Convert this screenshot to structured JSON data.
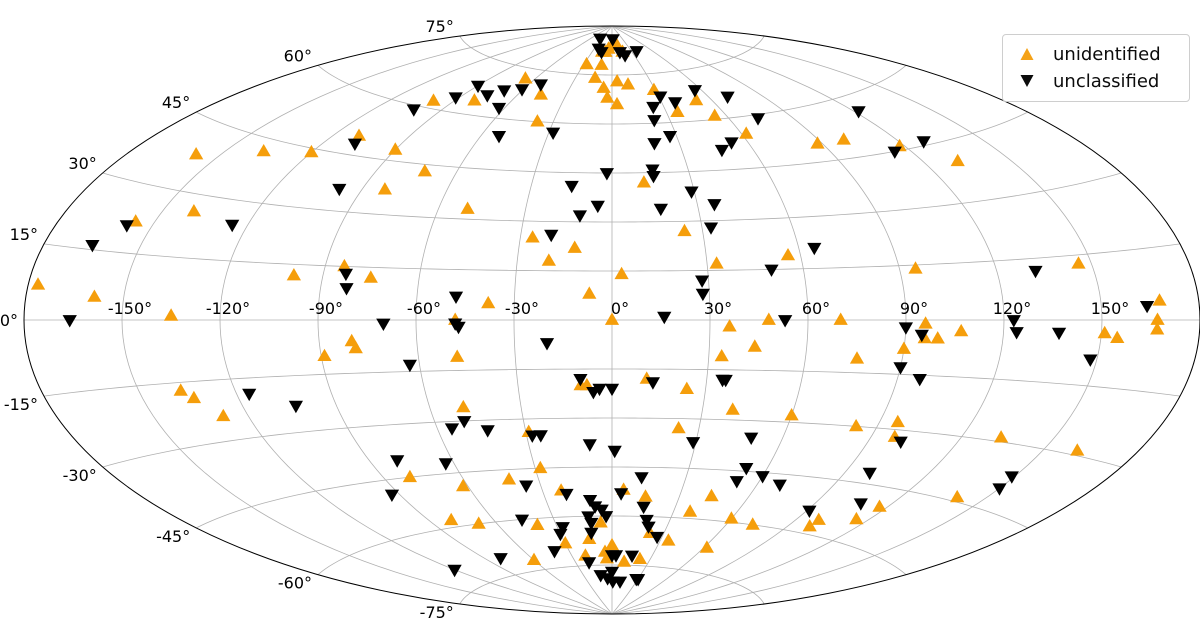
{
  "chart_data": {
    "type": "scatter",
    "projection": "aitoff",
    "grid": true,
    "legend_position": "top-right",
    "x_tick_labels": [
      "-150°",
      "-120°",
      "-90°",
      "-60°",
      "-30°",
      "0°",
      "30°",
      "60°",
      "90°",
      "120°",
      "150°"
    ],
    "y_tick_labels": [
      "75°",
      "60°",
      "45°",
      "30°",
      "15°",
      "0°",
      "-15°",
      "-30°",
      "-45°",
      "-60°",
      "-75°"
    ],
    "colors": {
      "unidentified": "#f59e0b",
      "unclassified": "#000000"
    },
    "markers": {
      "unidentified": "triangle-up",
      "unclassified": "triangle-down"
    },
    "series": [
      {
        "name": "unidentified",
        "points": [
          [
            -15,
            82
          ],
          [
            -10,
            82
          ],
          [
            -6,
            83
          ],
          [
            0,
            84
          ],
          [
            6,
            84
          ],
          [
            10,
            84
          ],
          [
            16,
            82
          ],
          [
            -27,
            78
          ],
          [
            -11,
            78
          ],
          [
            -100,
            62
          ],
          [
            -80,
            64
          ],
          [
            -110,
            50
          ],
          [
            -120,
            44
          ],
          [
            -137,
            42
          ],
          [
            -158,
            38
          ],
          [
            -90,
            48
          ],
          [
            -72,
            43
          ],
          [
            -82,
            37
          ],
          [
            -67,
            72
          ],
          [
            -46,
            68
          ],
          [
            -38,
            60
          ],
          [
            -14,
            74
          ],
          [
            -6,
            71
          ],
          [
            -3,
            68
          ],
          [
            3,
            66
          ],
          [
            4,
            73
          ],
          [
            12,
            72
          ],
          [
            29,
            70
          ],
          [
            36,
            63
          ],
          [
            51,
            66
          ],
          [
            54,
            61
          ],
          [
            62,
            55
          ],
          [
            88,
            50
          ],
          [
            100,
            50
          ],
          [
            118,
            46
          ],
          [
            132,
            40
          ],
          [
            12,
            42
          ],
          [
            -156,
            22
          ],
          [
            -140,
            26
          ],
          [
            -50,
            33
          ],
          [
            -26,
            25
          ],
          [
            -12,
            22
          ],
          [
            -20,
            18
          ],
          [
            -7,
            8
          ],
          [
            -99,
            12
          ],
          [
            -84,
            15
          ],
          [
            -75,
            12
          ],
          [
            -159,
            5
          ],
          [
            -135,
            1
          ],
          [
            -177,
            7
          ],
          [
            -38,
            5
          ],
          [
            3,
            14
          ],
          [
            24,
            27
          ],
          [
            33,
            17
          ],
          [
            56,
            19
          ],
          [
            95,
            14
          ],
          [
            146,
            13
          ],
          [
            168,
            4
          ],
          [
            -48,
            0
          ],
          [
            0,
            0
          ],
          [
            36,
            -2
          ],
          [
            48,
            0
          ],
          [
            70,
            0
          ],
          [
            96,
            -1
          ],
          [
            100,
            -5
          ],
          [
            107,
            -3
          ],
          [
            151,
            -3
          ],
          [
            155,
            -4
          ],
          [
            167,
            0
          ],
          [
            167,
            -2
          ],
          [
            96,
            -5
          ],
          [
            90,
            -8
          ],
          [
            44,
            -8
          ],
          [
            34,
            -11
          ],
          [
            76,
            -11
          ],
          [
            -89,
            -10
          ],
          [
            -79,
            -8
          ],
          [
            -80,
            -6
          ],
          [
            -48,
            -11
          ],
          [
            -10,
            -20
          ],
          [
            -8,
            -20
          ],
          [
            11,
            -18
          ],
          [
            24,
            -21
          ],
          [
            -134,
            -19
          ],
          [
            -137,
            -17
          ],
          [
            -128,
            -24
          ],
          [
            -49,
            -26
          ],
          [
            -29,
            -34
          ],
          [
            23,
            -33
          ],
          [
            40,
            -27
          ],
          [
            60,
            -28
          ],
          [
            83,
            -30
          ],
          [
            98,
            -32
          ],
          [
            96,
            -28
          ],
          [
            133,
            -29
          ],
          [
            161,
            -29
          ],
          [
            140,
            -44
          ],
          [
            117,
            -50
          ],
          [
            -80,
            -45
          ],
          [
            -62,
            -49
          ],
          [
            -42,
            -48
          ],
          [
            -28,
            -45
          ],
          [
            -22,
            -52
          ],
          [
            5,
            -52
          ],
          [
            15,
            -54
          ],
          [
            38,
            -58
          ],
          [
            44,
            -53
          ],
          [
            60,
            -59
          ],
          [
            73,
            -60
          ],
          [
            100,
            -56
          ],
          [
            115,
            -54
          ],
          [
            -80,
            -58
          ],
          [
            -69,
            -60
          ],
          [
            -40,
            -62
          ],
          [
            -30,
            -68
          ],
          [
            -14,
            -67
          ],
          [
            -6,
            -62
          ],
          [
            -5,
            -71
          ],
          [
            -4,
            -73
          ],
          [
            0,
            -69
          ],
          [
            22,
            -65
          ],
          [
            35,
            -67
          ],
          [
            62,
            -68
          ],
          [
            100,
            -58
          ],
          [
            -60,
            -72
          ],
          [
            -20,
            -72
          ],
          [
            10,
            -74
          ],
          [
            22,
            -73
          ]
        ]
      },
      {
        "name": "unclassified",
        "points": [
          [
            -23,
            83
          ],
          [
            -35,
            86
          ],
          [
            -16,
            82
          ],
          [
            2,
            86
          ],
          [
            12,
            82
          ],
          [
            18,
            81
          ],
          [
            38,
            82
          ],
          [
            -90,
            68
          ],
          [
            -92,
            64
          ],
          [
            -77,
            66
          ],
          [
            -71,
            68
          ],
          [
            -63,
            63
          ],
          [
            -61,
            69
          ],
          [
            -52,
            71
          ],
          [
            31,
            68
          ],
          [
            38,
            66
          ],
          [
            56,
            69
          ],
          [
            71,
            66
          ],
          [
            74,
            59
          ],
          [
            114,
            45
          ],
          [
            129,
            46
          ],
          [
            122,
            56
          ],
          [
            -103,
            59
          ],
          [
            -108,
            48
          ],
          [
            -98,
            36
          ],
          [
            -52,
            55
          ],
          [
            -28,
            57
          ],
          [
            22,
            61
          ],
          [
            24,
            65
          ],
          [
            27,
            56
          ],
          [
            47,
            51
          ],
          [
            53,
            53
          ],
          [
            19,
            54
          ],
          [
            16,
            44
          ],
          [
            29,
            39
          ],
          [
            36,
            35
          ],
          [
            -15,
            41
          ],
          [
            -5,
            35
          ],
          [
            -125,
            24
          ],
          [
            -20,
            26
          ],
          [
            -11,
            32
          ],
          [
            -2,
            45
          ],
          [
            16,
            46
          ],
          [
            17,
            34
          ],
          [
            33,
            28
          ],
          [
            -158,
            21
          ],
          [
            -165,
            16
          ],
          [
            -83,
            13
          ],
          [
            -82,
            9
          ],
          [
            -48,
            7
          ],
          [
            28,
            12
          ],
          [
            28,
            8
          ],
          [
            50,
            15
          ],
          [
            65,
            21
          ],
          [
            132,
            12
          ],
          [
            164,
            3
          ],
          [
            -166,
            0
          ],
          [
            -70,
            -1
          ],
          [
            -48,
            -1
          ],
          [
            -47,
            -2
          ],
          [
            16,
            1
          ],
          [
            53,
            0
          ],
          [
            90,
            -2
          ],
          [
            95,
            -4
          ],
          [
            123,
            0
          ],
          [
            124,
            -3
          ],
          [
            137,
            -3
          ],
          [
            148,
            -9
          ],
          [
            -20,
            -7
          ],
          [
            -63,
            -13
          ],
          [
            13,
            -19
          ],
          [
            -10,
            -18
          ],
          [
            -6,
            -22
          ],
          [
            -4,
            -21
          ],
          [
            0,
            -21
          ],
          [
            -116,
            -19
          ],
          [
            -103,
            -23
          ],
          [
            -55,
            -32
          ],
          [
            -50,
            -30
          ],
          [
            -43,
            -33
          ],
          [
            -28,
            -35
          ],
          [
            -25,
            -35
          ],
          [
            -8,
            -38
          ],
          [
            1,
            -40
          ],
          [
            29,
            -37
          ],
          [
            90,
            -13
          ],
          [
            97,
            -16
          ],
          [
            101,
            -33
          ],
          [
            99,
            -42
          ],
          [
            49,
            -35
          ],
          [
            52,
            -44
          ],
          [
            51,
            -48
          ],
          [
            60,
            -46
          ],
          [
            69,
            -48
          ],
          [
            36,
            -18
          ],
          [
            35,
            -18
          ],
          [
            -93,
            -49
          ],
          [
            -80,
            -40
          ],
          [
            -63,
            -42
          ],
          [
            -36,
            -50
          ],
          [
            4,
            -53
          ],
          [
            12,
            -48
          ],
          [
            15,
            -57
          ],
          [
            -46,
            -60
          ],
          [
            -20,
            -53
          ],
          [
            -12,
            -60
          ],
          [
            -10,
            -55
          ],
          [
            -27,
            -63
          ],
          [
            -8,
            -57
          ],
          [
            -5,
            -58
          ],
          [
            -3,
            -60
          ],
          [
            -12,
            -65
          ],
          [
            -11,
            -62
          ],
          [
            18,
            -61
          ],
          [
            20,
            -63
          ],
          [
            27,
            -66
          ],
          [
            -12,
            -78
          ],
          [
            -5,
            -79
          ],
          [
            0,
            -77
          ],
          [
            1,
            -80
          ],
          [
            10,
            -80
          ],
          [
            28,
            -79
          ],
          [
            30,
            -79
          ],
          [
            91,
            -54
          ],
          [
            108,
            -50
          ],
          [
            150,
            -40
          ],
          [
            149,
            -37
          ],
          [
            -120,
            -70
          ],
          [
            -80,
            -70
          ],
          [
            -40,
            -70
          ],
          [
            -30,
            -65
          ],
          [
            0,
            -72
          ],
          [
            3,
            -72
          ],
          [
            15,
            -72
          ],
          [
            -19,
            -74
          ]
        ]
      }
    ]
  }
}
